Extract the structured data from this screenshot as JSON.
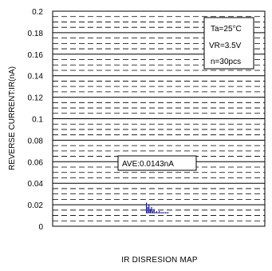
{
  "chart_data": {
    "type": "histogram",
    "xlabel": "IR DISRESION MAP",
    "ylabel": "REVERSE CURRENT:IR(nA)",
    "ylim": [
      0,
      0.2
    ],
    "yticks": [
      "0.2",
      "0.18",
      "0.16",
      "0.14",
      "0.12",
      "0.1",
      "0.08",
      "0.06",
      "0.04",
      "0.02",
      "0"
    ],
    "grid": true,
    "conditions": [
      "Ta=25°C",
      "VR=3.5V",
      "n=30pcs"
    ],
    "average_label": "AVE:0.0143nA",
    "average": 0.0143,
    "series": [
      {
        "color": "#1a1aa6",
        "x_rel": [
          0,
          1,
          2,
          3,
          4,
          5,
          6,
          7,
          8,
          9,
          10,
          11,
          12,
          13,
          14,
          15,
          16,
          17
        ],
        "values": [
          0.022,
          0.018,
          0.02,
          0.016,
          0.018,
          0.014,
          0.016,
          0.013,
          0.014,
          0.013,
          0.014,
          0.013,
          0.013,
          0.013,
          0.013,
          0.013,
          0.013,
          0.013
        ]
      }
    ]
  }
}
